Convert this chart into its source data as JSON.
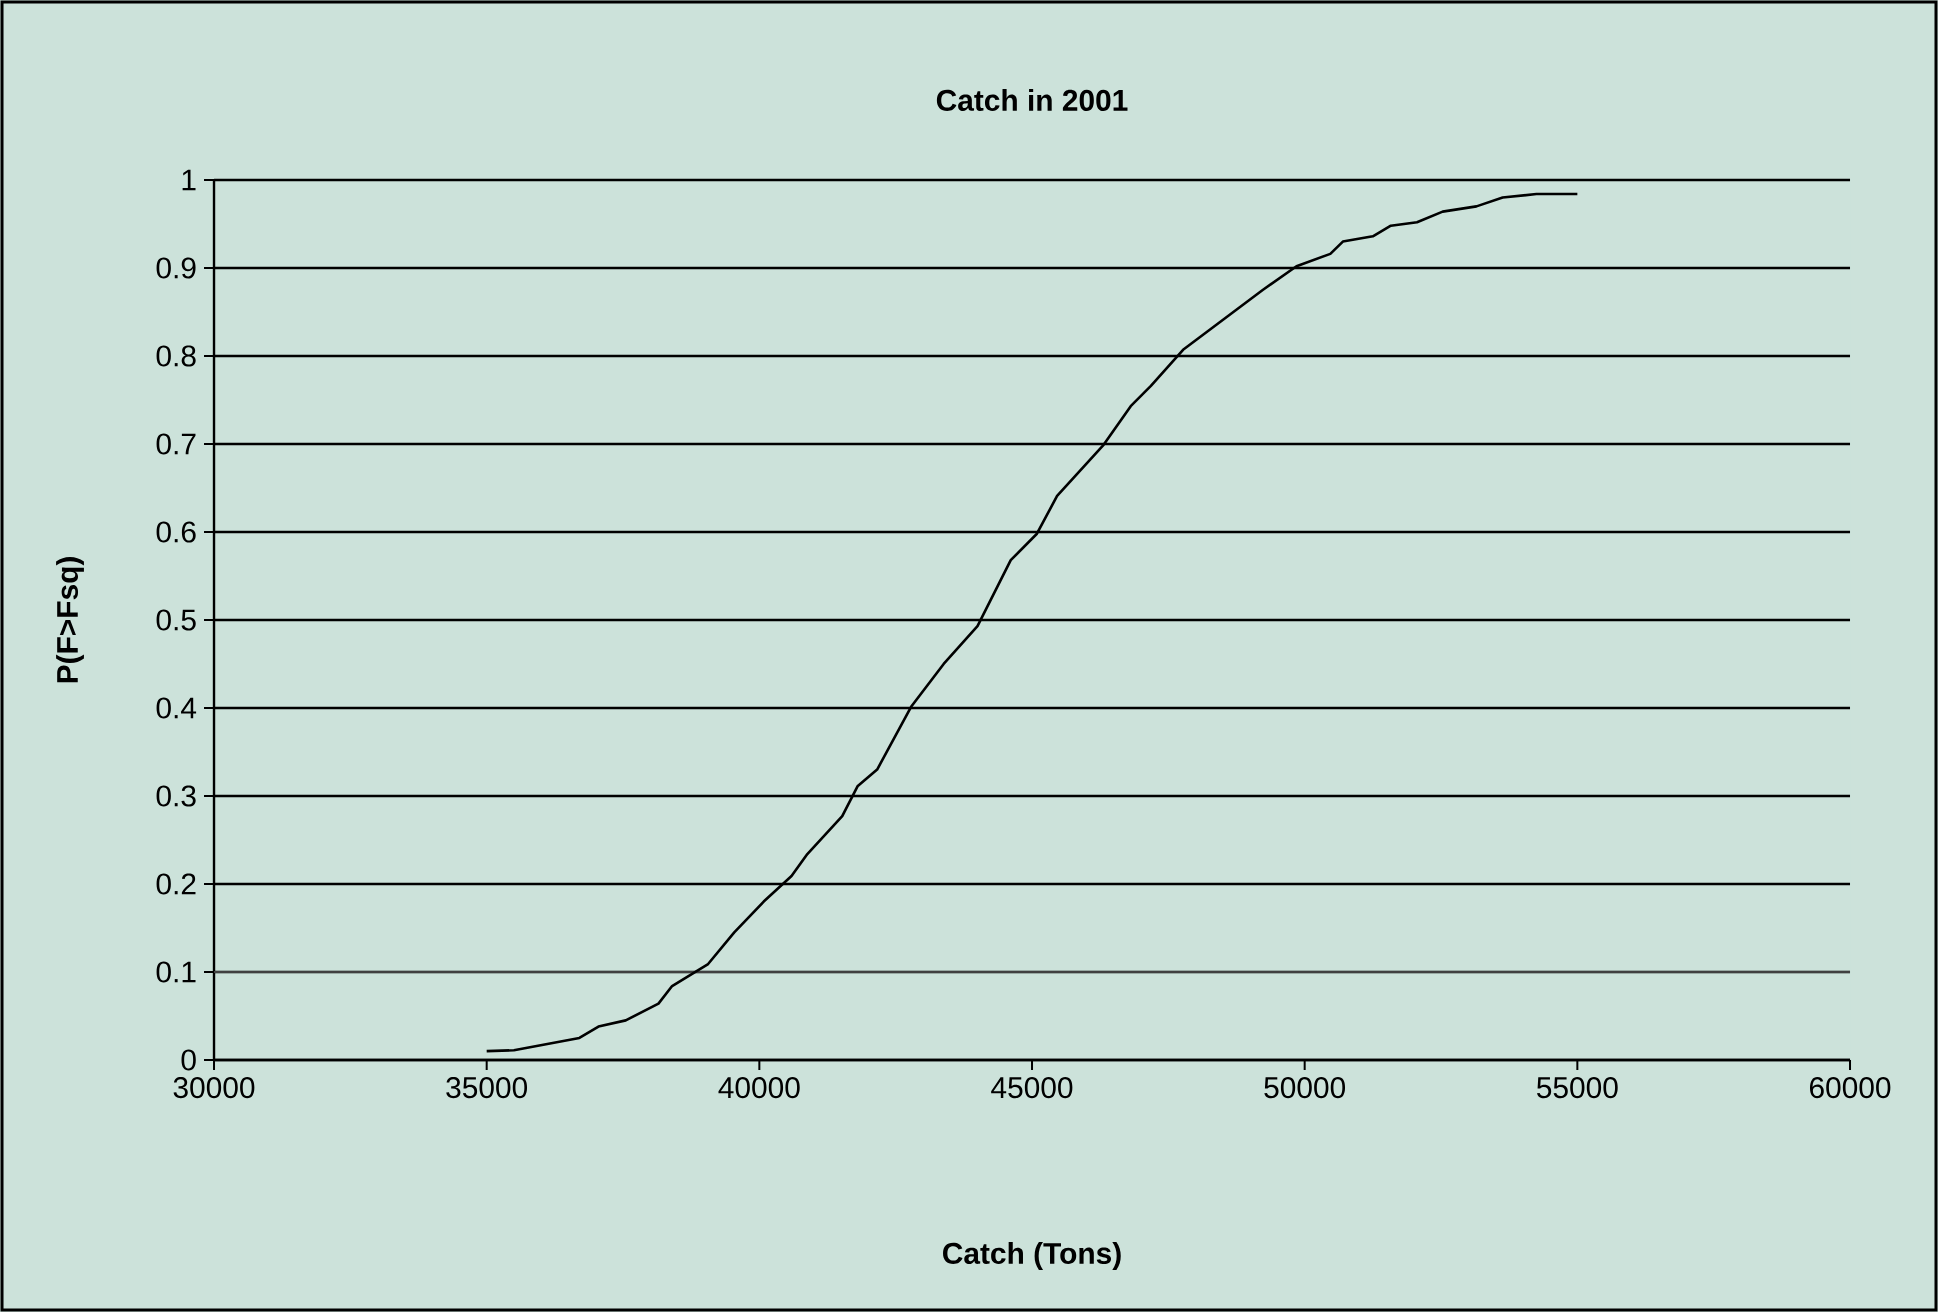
{
  "chart_data": {
    "type": "line",
    "title": "Catch in 2001",
    "xlabel": "Catch (Tons)",
    "ylabel": "P(F>Fsq)",
    "xlim": [
      30000,
      60000
    ],
    "xticks": [
      30000,
      35000,
      40000,
      45000,
      50000,
      55000,
      60000
    ],
    "ylim": [
      0,
      1
    ],
    "yticks": [
      0,
      0.1,
      0.2,
      0.3,
      0.4,
      0.5,
      0.6,
      0.7,
      0.8,
      0.9,
      1
    ],
    "grid": "y",
    "marker": "none",
    "line_style": "solid",
    "series": [
      {
        "color": "#000000",
        "x": [
          35000,
          35500,
          36700,
          37050,
          37550,
          38150,
          38400,
          39060,
          39540,
          40080,
          40590,
          40880,
          41520,
          41800,
          42160,
          42790,
          43380,
          44000,
          44610,
          45090,
          45460,
          46300,
          46810,
          47180,
          47770,
          48500,
          49230,
          49850,
          50470,
          50700,
          51250,
          51580,
          52060,
          52530,
          53150,
          53630,
          54250,
          55000
        ],
        "values": [
          0.01,
          0.011,
          0.025,
          0.038,
          0.045,
          0.064,
          0.084,
          0.109,
          0.145,
          0.18,
          0.209,
          0.234,
          0.277,
          0.311,
          0.33,
          0.402,
          0.45,
          0.493,
          0.568,
          0.598,
          0.641,
          0.698,
          0.743,
          0.766,
          0.807,
          0.841,
          0.875,
          0.902,
          0.916,
          0.93,
          0.936,
          0.948,
          0.952,
          0.964,
          0.97,
          0.98,
          0.984,
          0.984
        ]
      }
    ],
    "ref_lines": [
      {
        "axis": "y",
        "value": 0.1,
        "color": "#404040",
        "line_style": "solid"
      }
    ]
  }
}
